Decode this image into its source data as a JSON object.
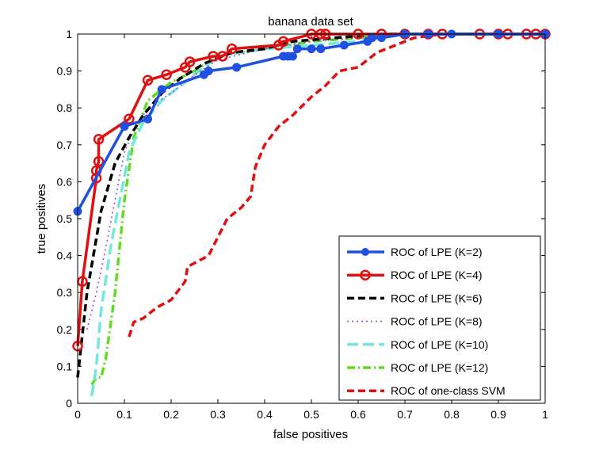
{
  "chart_data": {
    "type": "line",
    "title": "banana data set",
    "xlabel": "false positives",
    "ylabel": "true positives",
    "xlim": [
      0,
      1
    ],
    "ylim": [
      0,
      1
    ],
    "xticks": [
      "0",
      "0.1",
      "0.2",
      "0.3",
      "0.4",
      "0.5",
      "0.6",
      "0.7",
      "0.8",
      "0.9",
      "1"
    ],
    "yticks": [
      "0",
      "0.1",
      "0.2",
      "0.3",
      "0.4",
      "0.5",
      "0.6",
      "0.7",
      "0.8",
      "0.9",
      "1"
    ],
    "legend_position": "bottom-right",
    "series": [
      {
        "name": "ROC of LPE (K=2)",
        "color": "#2050e0",
        "dash": "solid",
        "marker": "dot",
        "x": [
          0.0,
          0.1,
          0.15,
          0.18,
          0.27,
          0.28,
          0.34,
          0.44,
          0.45,
          0.46,
          0.47,
          0.5,
          0.52,
          0.57,
          0.62,
          0.63,
          0.65,
          0.7,
          0.75,
          0.8,
          0.9,
          1.0
        ],
        "y": [
          0.52,
          0.75,
          0.77,
          0.85,
          0.89,
          0.9,
          0.91,
          0.94,
          0.94,
          0.94,
          0.96,
          0.96,
          0.96,
          0.97,
          0.98,
          0.99,
          0.99,
          1.0,
          1.0,
          1.0,
          1.0,
          1.0
        ]
      },
      {
        "name": "ROC of LPE (K=4)",
        "color": "#e01010",
        "dash": "solid",
        "marker": "circle",
        "x": [
          0.0,
          0.01,
          0.04,
          0.04,
          0.045,
          0.045,
          0.11,
          0.15,
          0.19,
          0.23,
          0.24,
          0.29,
          0.31,
          0.33,
          0.43,
          0.44,
          0.5,
          0.52,
          0.53,
          0.6,
          0.65,
          0.7,
          0.75,
          0.78,
          0.86,
          0.9,
          0.92,
          0.96,
          0.98,
          1.0
        ],
        "y": [
          0.155,
          0.33,
          0.61,
          0.63,
          0.655,
          0.715,
          0.77,
          0.875,
          0.89,
          0.91,
          0.925,
          0.94,
          0.94,
          0.96,
          0.97,
          0.98,
          1.0,
          1.0,
          1.0,
          1.0,
          1.0,
          1.0,
          1.0,
          1.0,
          1.0,
          1.0,
          1.0,
          1.0,
          1.0,
          1.0
        ]
      },
      {
        "name": "ROC of LPE (K=6)",
        "color": "#000000",
        "dash": "dashed",
        "marker": "none",
        "x": [
          0.0,
          0.02,
          0.05,
          0.08,
          0.11,
          0.14,
          0.18,
          0.22,
          0.27,
          0.33,
          0.4,
          0.46,
          0.55,
          0.65,
          0.8,
          1.0
        ],
        "y": [
          0.07,
          0.3,
          0.52,
          0.65,
          0.72,
          0.78,
          0.84,
          0.88,
          0.92,
          0.95,
          0.96,
          0.98,
          0.99,
          1.0,
          1.0,
          1.0
        ]
      },
      {
        "name": "ROC of LPE (K=8)",
        "color": "#b040d0",
        "dash": "dotted",
        "marker": "none",
        "x": [
          0.02,
          0.04,
          0.06,
          0.08,
          0.1,
          0.12,
          0.15,
          0.2,
          0.25,
          0.3,
          0.4,
          0.5,
          0.6,
          0.7,
          0.85,
          1.0
        ],
        "y": [
          0.2,
          0.3,
          0.42,
          0.55,
          0.68,
          0.74,
          0.8,
          0.84,
          0.89,
          0.93,
          0.96,
          0.98,
          0.99,
          1.0,
          1.0,
          1.0
        ]
      },
      {
        "name": "ROC of LPE (K=10)",
        "color": "#70e8e0",
        "dash": "longdash",
        "marker": "none",
        "x": [
          0.03,
          0.04,
          0.05,
          0.07,
          0.09,
          0.11,
          0.14,
          0.18,
          0.23,
          0.3,
          0.4,
          0.5,
          0.6,
          0.7,
          0.85,
          1.0
        ],
        "y": [
          0.02,
          0.1,
          0.25,
          0.42,
          0.55,
          0.68,
          0.76,
          0.82,
          0.87,
          0.94,
          0.96,
          0.97,
          0.98,
          1.0,
          1.0,
          1.0
        ]
      },
      {
        "name": "ROC of LPE (K=12)",
        "color": "#60dd20",
        "dash": "dashdot",
        "marker": "none",
        "x": [
          0.03,
          0.04,
          0.05,
          0.06,
          0.08,
          0.1,
          0.12,
          0.15,
          0.2,
          0.25,
          0.3,
          0.4,
          0.5,
          0.6,
          0.7,
          0.85,
          1.0
        ],
        "y": [
          0.05,
          0.07,
          0.07,
          0.12,
          0.3,
          0.55,
          0.72,
          0.82,
          0.87,
          0.9,
          0.94,
          0.96,
          0.98,
          0.99,
          1.0,
          1.0,
          1.0
        ]
      },
      {
        "name": "ROC of one-class SVM",
        "color": "#e01010",
        "dash": "dashed",
        "marker": "none",
        "x": [
          0.11,
          0.12,
          0.14,
          0.17,
          0.2,
          0.23,
          0.235,
          0.28,
          0.3,
          0.32,
          0.35,
          0.37,
          0.38,
          0.4,
          0.43,
          0.46,
          0.5,
          0.53,
          0.56,
          0.6,
          0.64,
          0.68,
          0.72,
          0.78,
          0.85,
          0.95,
          1.0
        ],
        "y": [
          0.18,
          0.22,
          0.23,
          0.26,
          0.28,
          0.33,
          0.37,
          0.4,
          0.45,
          0.5,
          0.53,
          0.56,
          0.64,
          0.7,
          0.75,
          0.78,
          0.83,
          0.86,
          0.9,
          0.91,
          0.95,
          0.97,
          0.99,
          1.0,
          1.0,
          1.0,
          1.0
        ]
      }
    ]
  }
}
